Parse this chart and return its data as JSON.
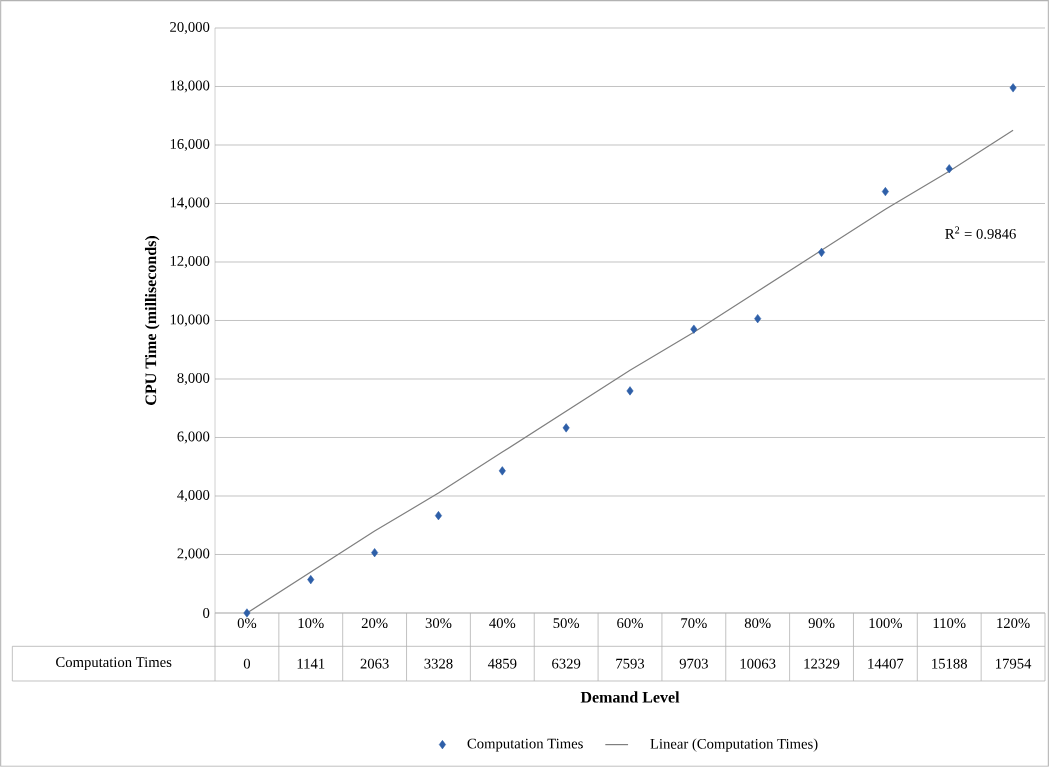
{
  "chart_data": {
    "type": "scatter",
    "xlabel": "Demand Level",
    "ylabel": "CPU Time (milliseconds)",
    "categories": [
      "0%",
      "10%",
      "20%",
      "30%",
      "40%",
      "50%",
      "60%",
      "70%",
      "80%",
      "90%",
      "100%",
      "110%",
      "120%"
    ],
    "series": [
      {
        "name": "Computation Times",
        "color": "#2e5fa8",
        "marker": "diamond",
        "values": [
          0,
          1141,
          2063,
          3328,
          4859,
          6329,
          7593,
          9703,
          10063,
          12329,
          14407,
          15188,
          17954
        ],
        "value_labels": [
          "0",
          "1141",
          "2063",
          "3328",
          "4859",
          "6329",
          "7593",
          "9703",
          "10063",
          "12329",
          "14407",
          "15188",
          "17954"
        ]
      },
      {
        "name": "Linear (Computation Times)",
        "type": "line",
        "color": "#7f7f7f",
        "line_style": "solid",
        "marker": "none",
        "values": [
          0,
          1400,
          2800,
          4100,
          5500,
          6900,
          8300,
          9600,
          11000,
          12400,
          13800,
          15100,
          16500
        ]
      }
    ],
    "ylim": [
      0,
      20000
    ],
    "yticks": [
      0,
      {
        "value": 2000,
        "label": "2,000"
      },
      {
        "value": 4000,
        "label": "4,000"
      },
      {
        "value": 6000,
        "label": "6,000"
      },
      {
        "value": 8000,
        "label": "8,000"
      },
      {
        "value": 10000,
        "label": "10,000"
      },
      {
        "value": 12000,
        "label": "12,000"
      },
      {
        "value": 14000,
        "label": "14,000"
      },
      {
        "value": 16000,
        "label": "16,000"
      },
      {
        "value": 18000,
        "label": "18,000"
      },
      {
        "value": 20000,
        "label": "20,000"
      }
    ],
    "grid": "y",
    "legend": "bottom",
    "annotations": [
      "R$^{2}$ = 0.9846"
    ]
  }
}
